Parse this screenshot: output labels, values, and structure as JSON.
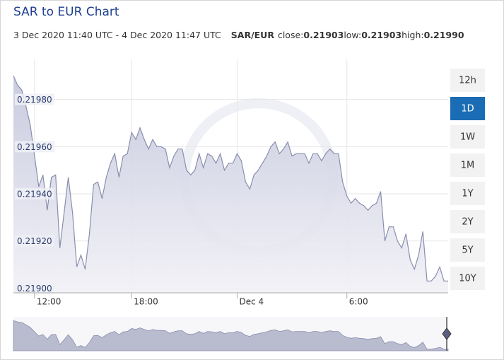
{
  "chart_data": {
    "type": "area",
    "title": "SAR to EUR Chart",
    "subtitle": "3 Dec 2020 11:40 UTC - 4 Dec 2020 11:47 UTC",
    "pair": "SAR/EUR",
    "stats": [
      {
        "label": "close:",
        "value": "0.21903"
      },
      {
        "label": "low:",
        "value": "0.21903"
      },
      {
        "label": "high:",
        "value": "0.21990"
      }
    ],
    "ranges": [
      "12h",
      "1D",
      "1W",
      "1M",
      "1Y",
      "2Y",
      "5Y",
      "10Y"
    ],
    "active_range": "1D",
    "color": "#8a8eae",
    "grid": true,
    "categories": [
      null,
      null,
      null,
      null,
      null,
      "12:00",
      null,
      null,
      null,
      null,
      null,
      null,
      null,
      null,
      null,
      null,
      null,
      null,
      null,
      null,
      null,
      null,
      null,
      null,
      null,
      null,
      null,
      null,
      "18:00",
      null,
      null,
      null,
      null,
      null,
      null,
      null,
      null,
      null,
      null,
      null,
      null,
      null,
      null,
      null,
      null,
      null,
      null,
      null,
      null,
      null,
      null,
      null,
      null,
      "Dec 4",
      null,
      null,
      null,
      null,
      null,
      null,
      null,
      null,
      null,
      null,
      null,
      null,
      null,
      null,
      null,
      null,
      null,
      null,
      null,
      null,
      null,
      null,
      null,
      null,
      null,
      "6:00",
      null,
      null,
      null,
      null,
      null,
      null,
      null,
      null,
      null,
      null,
      null,
      null,
      null,
      null,
      null,
      null,
      null,
      null,
      null,
      null,
      null,
      null,
      null,
      null
    ],
    "values": [
      0.2199,
      0.21986,
      0.21984,
      0.21977,
      0.21969,
      0.21956,
      0.21943,
      0.21948,
      0.21933,
      0.21947,
      0.21948,
      0.21917,
      0.21932,
      0.21947,
      0.21932,
      0.21909,
      0.21914,
      0.21908,
      0.21923,
      0.21944,
      0.21945,
      0.21938,
      0.21947,
      0.21953,
      0.21957,
      0.21947,
      0.21956,
      0.21957,
      0.21966,
      0.21963,
      0.21968,
      0.21963,
      0.21959,
      0.21963,
      0.2196,
      0.2196,
      0.21959,
      0.21951,
      0.21956,
      0.21959,
      0.21959,
      0.2195,
      0.21948,
      0.2195,
      0.21957,
      0.21951,
      0.21957,
      0.21956,
      0.21953,
      0.21957,
      0.2195,
      0.21953,
      0.21953,
      0.21957,
      0.21954,
      0.21945,
      0.21942,
      0.21948,
      0.2195,
      0.21953,
      0.21956,
      0.2196,
      0.21962,
      0.21957,
      0.21959,
      0.21962,
      0.21956,
      0.21957,
      0.21957,
      0.21957,
      0.21953,
      0.21957,
      0.21957,
      0.21954,
      0.21957,
      0.21959,
      0.21957,
      0.21957,
      0.21945,
      0.21939,
      0.21936,
      0.21938,
      0.21936,
      0.21935,
      0.21933,
      0.21935,
      0.21936,
      0.21941,
      0.2192,
      0.21926,
      0.21926,
      0.2192,
      0.21917,
      0.21923,
      0.21912,
      0.21908,
      0.21914,
      0.21924,
      0.21903,
      0.21903,
      0.21905,
      0.21909,
      0.21903,
      0.21903
    ],
    "ylim": [
      0.21898,
      0.21997
    ],
    "yticks": [
      {
        "value": 0.219,
        "label": "0.21900"
      },
      {
        "value": 0.2192,
        "label": "0.21920"
      },
      {
        "value": 0.2194,
        "label": "0.21940"
      },
      {
        "value": 0.2196,
        "label": "0.21960"
      },
      {
        "value": 0.2198,
        "label": "0.21980"
      }
    ]
  }
}
